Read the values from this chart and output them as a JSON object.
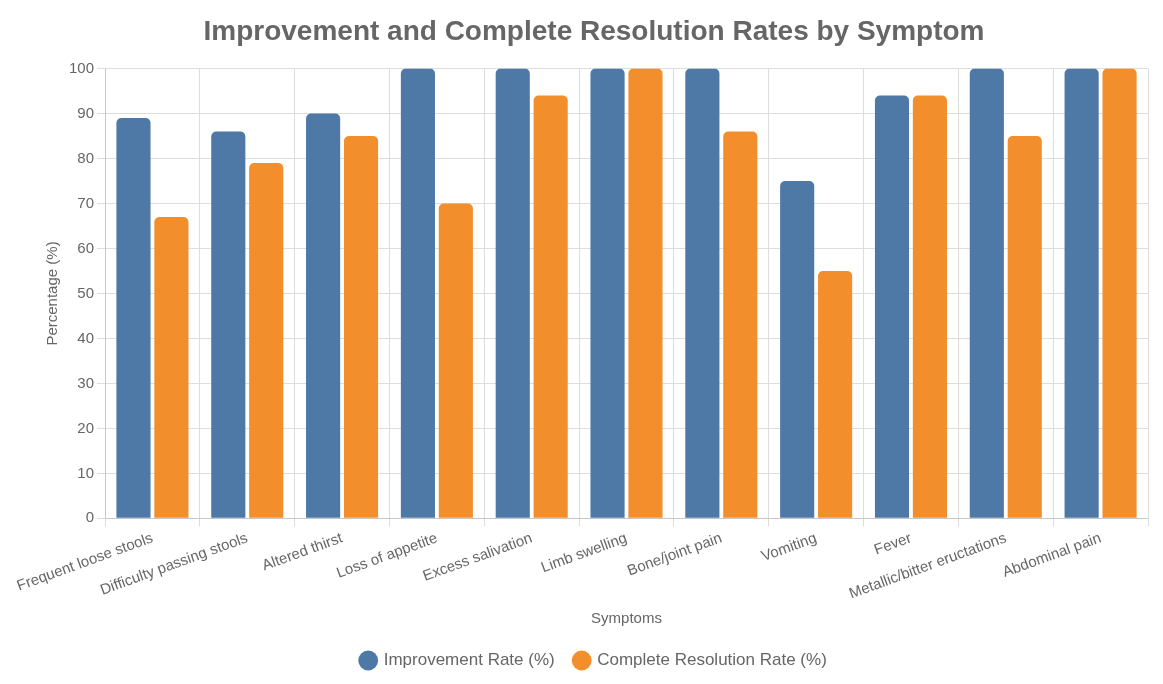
{
  "chart_data": {
    "type": "bar",
    "title": "Improvement and Complete Resolution Rates by Symptom",
    "xlabel": "Symptoms",
    "ylabel": "Percentage (%)",
    "categories": [
      "Frequent loose stools",
      "Difficulty passing stools",
      "Altered thirst",
      "Loss of appetite",
      "Excess salivation",
      "Limb swelling",
      "Bone/joint pain",
      "Vomiting",
      "Fever",
      "Metallic/bitter eructations",
      "Abdominal pain"
    ],
    "series": [
      {
        "name": "Improvement Rate (%)",
        "color": "#4e79a7",
        "values": [
          89,
          86,
          90,
          100,
          100,
          100,
          100,
          75,
          94,
          100,
          100
        ]
      },
      {
        "name": "Complete Resolution Rate (%)",
        "color": "#f28e2b",
        "values": [
          67,
          79,
          85,
          70,
          94,
          100,
          86,
          55,
          94,
          85,
          100
        ]
      }
    ],
    "ylim": [
      0,
      100
    ],
    "yticks": [
      0,
      10,
      20,
      30,
      40,
      50,
      60,
      70,
      80,
      90,
      100
    ],
    "grid": true,
    "legend": "bottom"
  }
}
